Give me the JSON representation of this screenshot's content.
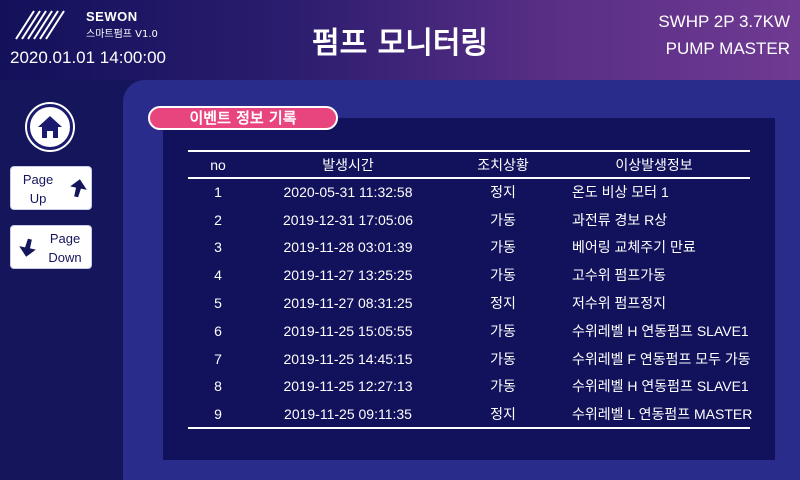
{
  "header": {
    "brand": "SEWON",
    "product": "스마트펌프 V1.0",
    "datetime": "2020.01.01 14:00:00",
    "title": "펌프 모니터링",
    "model_line1": "SWHP  2P 3.7KW",
    "model_line2": "PUMP MASTER"
  },
  "nav": {
    "home_icon": "home-icon",
    "page_up": {
      "line1": "Page",
      "line2": "Up",
      "icon": "arrow-up-icon"
    },
    "page_down": {
      "line1": "Page",
      "line2": "Down",
      "icon": "arrow-down-icon"
    }
  },
  "section": {
    "badge": "이벤트 정보 기록"
  },
  "table": {
    "columns": [
      "no",
      "발생시간",
      "조치상황",
      "이상발생정보"
    ],
    "rows": [
      [
        "1",
        "2020-05-31 11:32:58",
        "정지",
        "온도 비상 모터 1"
      ],
      [
        "2",
        "2019-12-31 17:05:06",
        "가동",
        "과전류 경보 R상"
      ],
      [
        "3",
        "2019-11-28 03:01:39",
        "가동",
        "베어링 교체주기 만료"
      ],
      [
        "4",
        "2019-11-27 13:25:25",
        "가동",
        "고수위 펌프가동"
      ],
      [
        "5",
        "2019-11-27 08:31:25",
        "정지",
        "저수위 펌프정지"
      ],
      [
        "6",
        "2019-11-25 15:05:55",
        "가동",
        "수위레벨 H 연동펌프 SLAVE1"
      ],
      [
        "7",
        "2019-11-25 14:45:15",
        "가동",
        "수위레벨 F 연동펌프 모두 가동"
      ],
      [
        "8",
        "2019-11-25 12:27:13",
        "가동",
        "수위레벨 H 연동펌프 SLAVE1"
      ],
      [
        "9",
        "2019-11-25 09:11:35",
        "정지",
        "수위레벨 L 연동펌프 MASTER"
      ]
    ]
  },
  "colors": {
    "background": "#14155a",
    "panel": "#2a2c8c",
    "table_bg": "#12125c",
    "badge": "#e8447e"
  }
}
